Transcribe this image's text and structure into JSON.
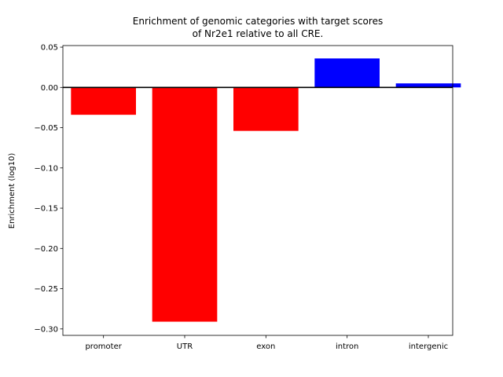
{
  "chart_data": {
    "type": "bar",
    "title_lines": [
      "Enrichment of genomic categories with target scores",
      "of Nr2e1 relative to all CRE."
    ],
    "xlabel": "",
    "ylabel": "Enrichment (log10)",
    "categories": [
      "promoter",
      "UTR",
      "exon",
      "intron",
      "intergenic"
    ],
    "values": [
      -0.034,
      -0.291,
      -0.054,
      0.036,
      0.005
    ],
    "bar_colors": [
      "#ff0000",
      "#ff0000",
      "#ff0000",
      "#0000ff",
      "#0000ff"
    ],
    "ylim": [
      -0.308,
      0.052
    ],
    "yticks": [
      0.05,
      0.0,
      -0.05,
      -0.1,
      -0.15,
      -0.2,
      -0.25,
      -0.3
    ],
    "ytick_labels": [
      "0.05",
      "0.00",
      "−0.05",
      "−0.10",
      "−0.15",
      "−0.20",
      "−0.25",
      "−0.30"
    ],
    "zero_line": true,
    "grid": false,
    "legend": "none"
  }
}
